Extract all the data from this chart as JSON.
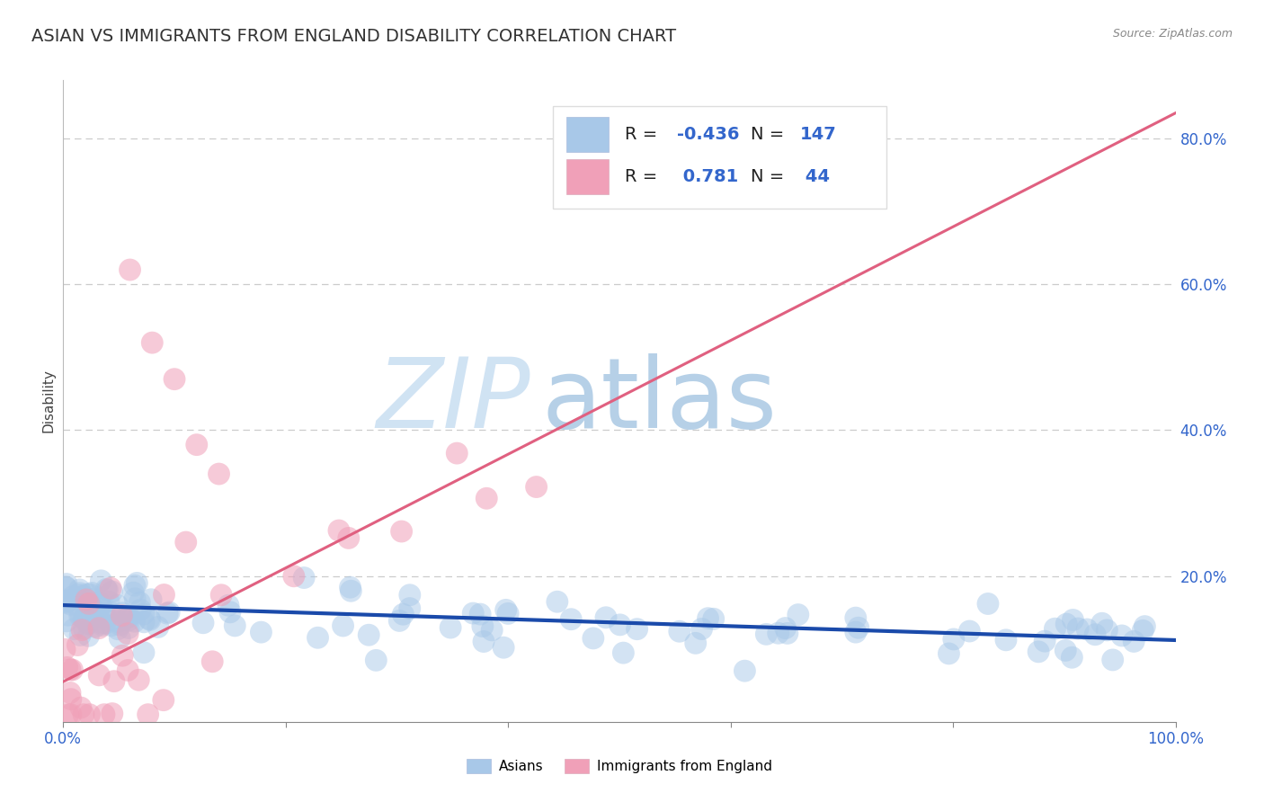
{
  "title": "ASIAN VS IMMIGRANTS FROM ENGLAND DISABILITY CORRELATION CHART",
  "source_text": "Source: ZipAtlas.com",
  "ylabel": "Disability",
  "xlim": [
    0.0,
    1.0
  ],
  "ylim": [
    0.0,
    0.88
  ],
  "x_ticks": [
    0.0,
    0.2,
    0.4,
    0.6,
    0.8,
    1.0
  ],
  "y_ticks": [
    0.2,
    0.4,
    0.6,
    0.8
  ],
  "y_tick_labels": [
    "20.0%",
    "40.0%",
    "60.0%",
    "80.0%"
  ],
  "blue_color": "#a8c8e8",
  "blue_line_color": "#1a4aaa",
  "pink_color": "#f0a0b8",
  "pink_line_color": "#e06080",
  "legend_R1": "-0.436",
  "legend_N1": "147",
  "legend_R2": "0.781",
  "legend_N2": "44",
  "watermark_ZIP": "ZIP",
  "watermark_atlas": "atlas",
  "background_color": "#ffffff",
  "grid_color": "#cccccc",
  "blue_intercept": 0.16,
  "blue_slope": -0.048,
  "pink_intercept": 0.055,
  "pink_slope": 0.78,
  "title_fontsize": 14,
  "axis_label_fontsize": 11,
  "tick_fontsize": 12,
  "legend_text_color": "#3366cc",
  "legend_label_color": "#222222"
}
